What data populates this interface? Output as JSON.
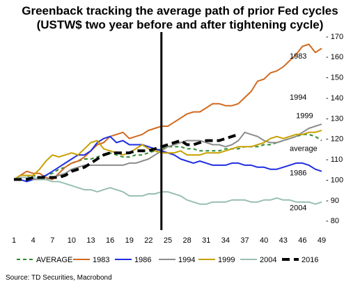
{
  "chart_data": {
    "type": "line",
    "title": "Greenback tracking the average path of prior Fed cycles",
    "subtitle": "(USTW$ two year before and after tightening cycle)",
    "source": "Source: TD Securities, Macrobond",
    "x_ticks": [
      1,
      4,
      7,
      10,
      13,
      16,
      19,
      22,
      25,
      28,
      31,
      34,
      37,
      40,
      43,
      46,
      49
    ],
    "xlim": [
      1,
      49
    ],
    "y_ticks": [
      80,
      90,
      100,
      110,
      120,
      130,
      140,
      150,
      160,
      170
    ],
    "y_tick_labels": [
      "- 80",
      "- 90",
      "- 100",
      "- 110",
      "- 120",
      "- 130",
      "- 140",
      "- 150",
      "- 160",
      "- 170"
    ],
    "ylim": [
      77,
      174
    ],
    "vertical_line_x": 24,
    "grid": false,
    "legend_position": "bottom",
    "series": [
      {
        "name": "AVERAGE",
        "color": "#2e8b2e",
        "dash": "5,4",
        "width": 2,
        "values": [
          100,
          101,
          101,
          102,
          101,
          102,
          103,
          105,
          106,
          108,
          109,
          110,
          110,
          111,
          112,
          113,
          112,
          111,
          111,
          112,
          112,
          113,
          114,
          115,
          116,
          116,
          116,
          115,
          115,
          114,
          114,
          114,
          114,
          115,
          115,
          115,
          116,
          116,
          116,
          117,
          117,
          118,
          119,
          120,
          121,
          122,
          122,
          121,
          119
        ]
      },
      {
        "name": "1983",
        "color": "#d2691e",
        "dash": "",
        "width": 2,
        "values": [
          100,
          102,
          104,
          103,
          103,
          101,
          100,
          103,
          106,
          108,
          109,
          111,
          114,
          117,
          118,
          121,
          122,
          123,
          120,
          121,
          122,
          124,
          125,
          126,
          126,
          128,
          130,
          132,
          133,
          133,
          135,
          137,
          137,
          136,
          136,
          137,
          140,
          143,
          148,
          149,
          152,
          153,
          155,
          158,
          161,
          165,
          166,
          162,
          164
        ]
      },
      {
        "name": "1986",
        "color": "#1f2ee0",
        "dash": "",
        "width": 2,
        "values": [
          100,
          100,
          99,
          100,
          101,
          102,
          104,
          106,
          108,
          110,
          112,
          112,
          114,
          118,
          120,
          121,
          118,
          119,
          117,
          117,
          117,
          116,
          115,
          114,
          113,
          112,
          110,
          109,
          108,
          109,
          108,
          107,
          107,
          107,
          108,
          108,
          107,
          107,
          106,
          106,
          105,
          105,
          106,
          107,
          108,
          108,
          107,
          105,
          104
        ]
      },
      {
        "name": "1994",
        "color": "#8c8c8c",
        "dash": "",
        "width": 2,
        "values": [
          100,
          101,
          101,
          100,
          100,
          100,
          101,
          102,
          103,
          105,
          106,
          107,
          107,
          107,
          107,
          107,
          107,
          107,
          108,
          108,
          109,
          110,
          112,
          114,
          116,
          117,
          118,
          119,
          119,
          119,
          118,
          117,
          117,
          116,
          117,
          119,
          123,
          122,
          121,
          119,
          118,
          118,
          119,
          120,
          121,
          123,
          125,
          126,
          127
        ]
      },
      {
        "name": "1999",
        "color": "#c8a000",
        "dash": "",
        "width": 2,
        "values": [
          100,
          102,
          102,
          102,
          105,
          109,
          112,
          111,
          112,
          113,
          112,
          115,
          118,
          119,
          115,
          114,
          113,
          112,
          113,
          115,
          117,
          115,
          114,
          113,
          113,
          113,
          114,
          112,
          112,
          112,
          113,
          113,
          113,
          114,
          115,
          116,
          116,
          116,
          117,
          118,
          120,
          121,
          120,
          121,
          122,
          122,
          123,
          123,
          124
        ]
      },
      {
        "name": "2004",
        "color": "#98bfb0",
        "dash": "",
        "width": 2,
        "values": [
          100,
          101,
          101,
          101,
          100,
          100,
          99,
          99,
          98,
          97,
          96,
          95,
          95,
          94,
          95,
          96,
          95,
          94,
          92,
          92,
          92,
          93,
          93,
          94,
          94,
          93,
          92,
          90,
          89,
          88,
          88,
          89,
          89,
          89,
          90,
          90,
          90,
          89,
          89,
          90,
          90,
          91,
          90,
          90,
          89,
          89,
          89,
          88,
          89
        ]
      },
      {
        "name": "2016",
        "color": "#000000",
        "dash": "11,6",
        "width": 4,
        "values": [
          100,
          100,
          100,
          101,
          101,
          101,
          101,
          101,
          102,
          104,
          105,
          106,
          108,
          110,
          112,
          113,
          113,
          113,
          113,
          114,
          114,
          114,
          115,
          116,
          117,
          118,
          119,
          117,
          117,
          118,
          119,
          119,
          119,
          120,
          121,
          122
        ]
      }
    ],
    "annotations": [
      {
        "text": "1983",
        "x": 44,
        "y": 159
      },
      {
        "text": "1994",
        "x": 44,
        "y": 139
      },
      {
        "text": "1999",
        "x": 45,
        "y": 130
      },
      {
        "text": "average",
        "x": 44,
        "y": 114
      },
      {
        "text": "1986",
        "x": 44,
        "y": 102
      },
      {
        "text": "2004",
        "x": 44,
        "y": 85
      }
    ]
  }
}
